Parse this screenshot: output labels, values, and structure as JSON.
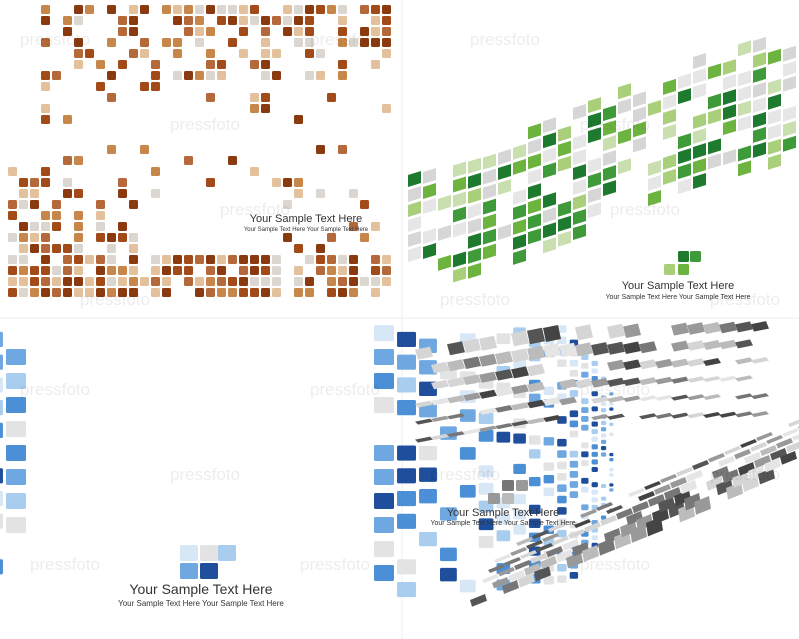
{
  "watermark": "pressfoto",
  "panels": [
    {
      "title": "Your Sample Text Here",
      "subtitle": "Your Sample Text Here Your Sample Text Here"
    },
    {
      "title": "Your Sample Text Here",
      "subtitle": "Your Sample Text Here Your Sample Text Here"
    },
    {
      "title": "Your Sample Text Here",
      "subtitle": "Your Sample Text Here Your Sample Text Here"
    },
    {
      "title": "Your Sample Text Here",
      "subtitle": "Your Sample Text Here Your Sample Text Here"
    }
  ]
}
